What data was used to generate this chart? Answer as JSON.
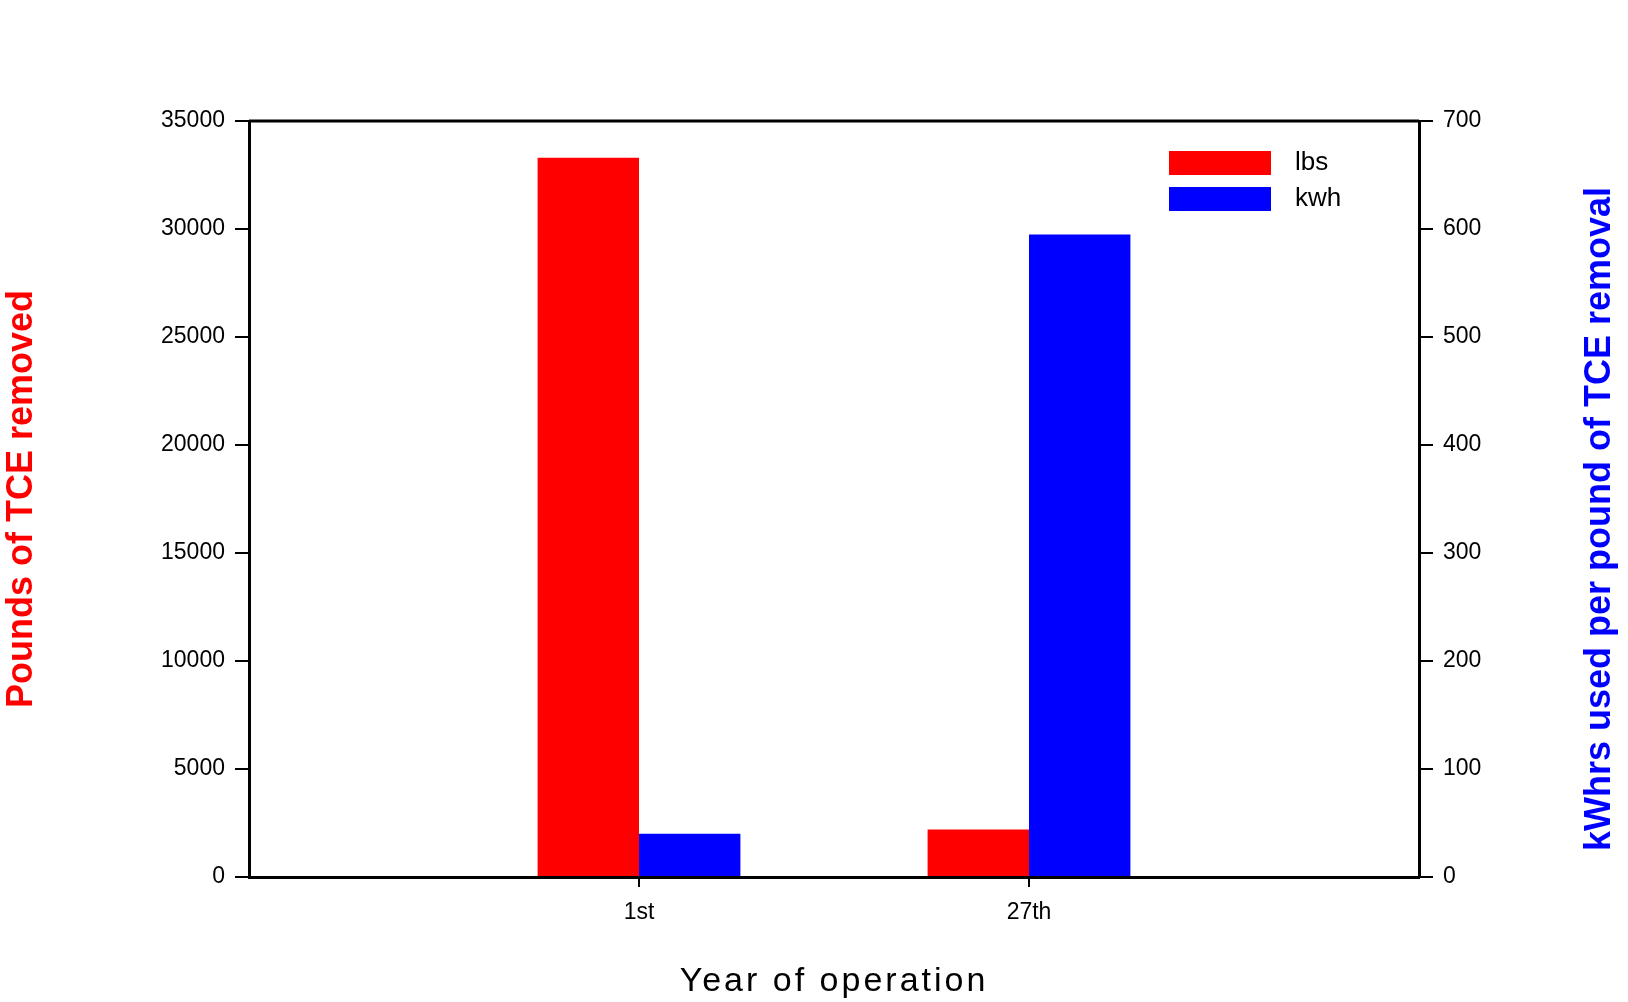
{
  "chart_data": {
    "type": "bar",
    "xlabel": "Year of operation",
    "ylabel": "Pounds of TCE removed",
    "y2label": "kWhrs used per pound of TCE removal",
    "categories": [
      "1st",
      "27th"
    ],
    "series": [
      {
        "name": "lbs",
        "color": "#ff0000",
        "values": [
          33300,
          2200
        ]
      },
      {
        "name": "kwh",
        "color": "#0000ff",
        "values": [
          40,
          595
        ],
        "axis": "y2"
      }
    ],
    "ylim": [
      0,
      35000
    ],
    "yticks": [
      0,
      5000,
      10000,
      15000,
      20000,
      25000,
      30000,
      35000
    ],
    "y2lim": [
      0,
      700
    ],
    "y2ticks": [
      0,
      100,
      200,
      300,
      400,
      500,
      600,
      700
    ],
    "grid": false,
    "legend": "top right"
  }
}
